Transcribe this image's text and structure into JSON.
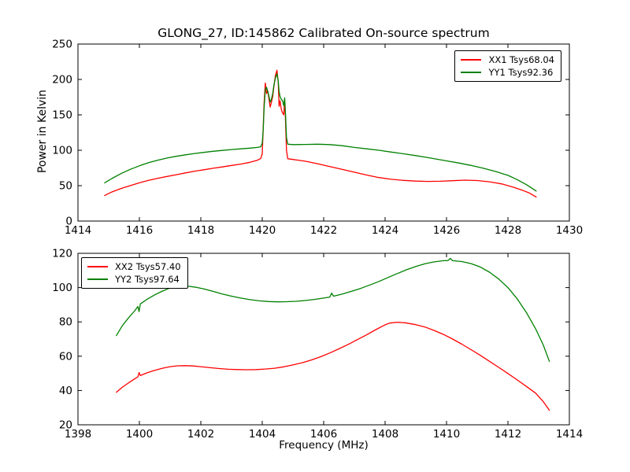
{
  "figure": {
    "title": "GLONG_27, ID:145862 Calibrated On-source spectrum",
    "xlabel": "Frequency (MHz)",
    "ylabel": "Power in Kelvin",
    "background_color": "#ffffff",
    "axis_color": "#000000"
  },
  "chart_data": [
    {
      "type": "line",
      "panel": "top",
      "xlim": [
        1414,
        1430
      ],
      "ylim": [
        0,
        250
      ],
      "xticks": [
        1414,
        1416,
        1418,
        1420,
        1422,
        1424,
        1426,
        1428,
        1430
      ],
      "yticks": [
        0,
        50,
        100,
        150,
        200,
        250
      ],
      "grid": false,
      "legend": {
        "position": "upper right",
        "entries": [
          {
            "label": "XX1 Tsys68.04",
            "color": "#ff0000"
          },
          {
            "label": "YY1 Tsys92.36",
            "color": "#008000"
          }
        ]
      },
      "series": [
        {
          "name": "XX1",
          "tsys": 68.04,
          "color": "#ff0000",
          "points": [
            [
              1414.87,
              36
            ],
            [
              1415.1,
              41
            ],
            [
              1415.4,
              46
            ],
            [
              1415.7,
              50
            ],
            [
              1416.0,
              54
            ],
            [
              1416.3,
              57.5
            ],
            [
              1416.6,
              60.5
            ],
            [
              1416.9,
              63
            ],
            [
              1417.2,
              65.5
            ],
            [
              1417.5,
              68
            ],
            [
              1417.8,
              70.5
            ],
            [
              1418.1,
              72.5
            ],
            [
              1418.4,
              74.5
            ],
            [
              1418.7,
              76.5
            ],
            [
              1419.0,
              78.5
            ],
            [
              1419.3,
              80.5
            ],
            [
              1419.6,
              83
            ],
            [
              1419.85,
              86
            ],
            [
              1419.95,
              88.5
            ],
            [
              1420.0,
              95
            ],
            [
              1420.03,
              130
            ],
            [
              1420.06,
              165
            ],
            [
              1420.1,
              195
            ],
            [
              1420.14,
              180
            ],
            [
              1420.18,
              184
            ],
            [
              1420.22,
              172
            ],
            [
              1420.26,
              161
            ],
            [
              1420.3,
              168
            ],
            [
              1420.34,
              176
            ],
            [
              1420.38,
              190
            ],
            [
              1420.43,
              206
            ],
            [
              1420.48,
              213
            ],
            [
              1420.52,
              196
            ],
            [
              1420.55,
              162
            ],
            [
              1420.58,
              170
            ],
            [
              1420.62,
              158
            ],
            [
              1420.66,
              153
            ],
            [
              1420.7,
              150
            ],
            [
              1420.73,
              170
            ],
            [
              1420.76,
              140
            ],
            [
              1420.79,
              100
            ],
            [
              1420.83,
              88
            ],
            [
              1421.0,
              87
            ],
            [
              1421.4,
              84.5
            ],
            [
              1421.8,
              81
            ],
            [
              1422.2,
              77
            ],
            [
              1422.6,
              73
            ],
            [
              1423.0,
              69
            ],
            [
              1423.4,
              65
            ],
            [
              1423.8,
              61.5
            ],
            [
              1424.2,
              59
            ],
            [
              1424.6,
              57.5
            ],
            [
              1425.0,
              56.5
            ],
            [
              1425.4,
              56
            ],
            [
              1425.8,
              56.2
            ],
            [
              1426.2,
              57
            ],
            [
              1426.6,
              57.8
            ],
            [
              1427.0,
              57.2
            ],
            [
              1427.4,
              55.5
            ],
            [
              1427.8,
              52.5
            ],
            [
              1428.2,
              47.5
            ],
            [
              1428.5,
              43
            ],
            [
              1428.7,
              39.5
            ],
            [
              1428.92,
              34
            ]
          ]
        },
        {
          "name": "YY1",
          "tsys": 92.36,
          "color": "#008000",
          "points": [
            [
              1414.87,
              54
            ],
            [
              1415.1,
              60
            ],
            [
              1415.4,
              67
            ],
            [
              1415.7,
              73
            ],
            [
              1416.0,
              78
            ],
            [
              1416.3,
              82.5
            ],
            [
              1416.6,
              86
            ],
            [
              1416.9,
              89
            ],
            [
              1417.2,
              91.5
            ],
            [
              1417.5,
              93.5
            ],
            [
              1417.8,
              95.5
            ],
            [
              1418.1,
              97
            ],
            [
              1418.4,
              98.5
            ],
            [
              1418.7,
              99.8
            ],
            [
              1419.0,
              101
            ],
            [
              1419.3,
              102
            ],
            [
              1419.6,
              103
            ],
            [
              1419.85,
              104
            ],
            [
              1419.95,
              105
            ],
            [
              1420.0,
              110
            ],
            [
              1420.03,
              128
            ],
            [
              1420.06,
              158
            ],
            [
              1420.1,
              186
            ],
            [
              1420.14,
              189
            ],
            [
              1420.18,
              183
            ],
            [
              1420.22,
              176
            ],
            [
              1420.26,
              168
            ],
            [
              1420.3,
              172
            ],
            [
              1420.34,
              180
            ],
            [
              1420.38,
              192
            ],
            [
              1420.43,
              202
            ],
            [
              1420.48,
              208
            ],
            [
              1420.52,
              198
            ],
            [
              1420.55,
              183
            ],
            [
              1420.58,
              176
            ],
            [
              1420.62,
              172
            ],
            [
              1420.66,
              170
            ],
            [
              1420.7,
              163
            ],
            [
              1420.73,
              174
            ],
            [
              1420.76,
              150
            ],
            [
              1420.79,
              118
            ],
            [
              1420.83,
              108.5
            ],
            [
              1421.0,
              108
            ],
            [
              1421.4,
              108.2
            ],
            [
              1421.8,
              108.5
            ],
            [
              1422.2,
              108
            ],
            [
              1422.6,
              106.5
            ],
            [
              1423.0,
              104
            ],
            [
              1423.4,
              102
            ],
            [
              1423.8,
              100
            ],
            [
              1424.2,
              97.5
            ],
            [
              1424.6,
              95
            ],
            [
              1425.0,
              92.5
            ],
            [
              1425.4,
              89.5
            ],
            [
              1426.0,
              85
            ],
            [
              1426.4,
              82
            ],
            [
              1426.8,
              78.5
            ],
            [
              1427.2,
              74.5
            ],
            [
              1427.6,
              70
            ],
            [
              1428.0,
              64.5
            ],
            [
              1428.3,
              58.5
            ],
            [
              1428.6,
              51.5
            ],
            [
              1428.92,
              42.5
            ]
          ]
        }
      ]
    },
    {
      "type": "line",
      "panel": "bottom",
      "xlim": [
        1398,
        1414
      ],
      "ylim": [
        20,
        120
      ],
      "xticks": [
        1398,
        1400,
        1402,
        1404,
        1406,
        1408,
        1410,
        1412,
        1414
      ],
      "yticks": [
        20,
        40,
        60,
        80,
        100,
        120
      ],
      "grid": false,
      "legend": {
        "position": "upper left",
        "entries": [
          {
            "label": "XX2 Tsys57.40",
            "color": "#ff0000"
          },
          {
            "label": "YY2 Tsys97.64",
            "color": "#008000"
          }
        ]
      },
      "series": [
        {
          "name": "XX2",
          "tsys": 57.4,
          "color": "#ff0000",
          "points": [
            [
              1399.25,
              39
            ],
            [
              1399.45,
              42
            ],
            [
              1399.65,
              44.5
            ],
            [
              1399.85,
              46.8
            ],
            [
              1399.95,
              48
            ],
            [
              1399.99,
              50.5
            ],
            [
              1400.03,
              48.7
            ],
            [
              1400.25,
              50.3
            ],
            [
              1400.5,
              51.8
            ],
            [
              1400.75,
              53
            ],
            [
              1401.0,
              53.9
            ],
            [
              1401.25,
              54.4
            ],
            [
              1401.5,
              54.5
            ],
            [
              1401.75,
              54.3
            ],
            [
              1402.0,
              53.9
            ],
            [
              1402.3,
              53.3
            ],
            [
              1402.6,
              52.8
            ],
            [
              1402.9,
              52.4
            ],
            [
              1403.2,
              52.2
            ],
            [
              1403.5,
              52.1
            ],
            [
              1403.8,
              52.2
            ],
            [
              1404.1,
              52.5
            ],
            [
              1404.4,
              53
            ],
            [
              1404.7,
              53.8
            ],
            [
              1405.0,
              54.9
            ],
            [
              1405.3,
              56.2
            ],
            [
              1405.6,
              57.8
            ],
            [
              1405.9,
              59.7
            ],
            [
              1406.2,
              61.9
            ],
            [
              1406.5,
              64.3
            ],
            [
              1406.8,
              66.9
            ],
            [
              1407.1,
              69.7
            ],
            [
              1407.4,
              72.5
            ],
            [
              1407.7,
              75.5
            ],
            [
              1408.0,
              78.3
            ],
            [
              1408.15,
              79.3
            ],
            [
              1408.4,
              79.8
            ],
            [
              1408.65,
              79.5
            ],
            [
              1409.0,
              78.4
            ],
            [
              1409.3,
              77
            ],
            [
              1409.6,
              75
            ],
            [
              1409.9,
              72.7
            ],
            [
              1410.2,
              70
            ],
            [
              1410.5,
              67
            ],
            [
              1410.8,
              63.8
            ],
            [
              1411.1,
              60.5
            ],
            [
              1411.4,
              57
            ],
            [
              1411.7,
              53.5
            ],
            [
              1412.0,
              49.9
            ],
            [
              1412.3,
              46.2
            ],
            [
              1412.6,
              42.4
            ],
            [
              1412.9,
              38.5
            ],
            [
              1413.15,
              33.5
            ],
            [
              1413.35,
              28.5
            ]
          ]
        },
        {
          "name": "YY2",
          "tsys": 97.64,
          "color": "#008000",
          "points": [
            [
              1399.25,
              72
            ],
            [
              1399.45,
              78
            ],
            [
              1399.65,
              82.5
            ],
            [
              1399.85,
              86.5
            ],
            [
              1399.95,
              89
            ],
            [
              1399.99,
              86
            ],
            [
              1400.03,
              90.5
            ],
            [
              1400.25,
              93.2
            ],
            [
              1400.5,
              95.8
            ],
            [
              1400.75,
              98
            ],
            [
              1401.0,
              99.8
            ],
            [
              1401.2,
              100.7
            ],
            [
              1401.4,
              101
            ],
            [
              1401.6,
              100.8
            ],
            [
              1401.85,
              100.2
            ],
            [
              1402.1,
              99.2
            ],
            [
              1402.4,
              97.8
            ],
            [
              1402.7,
              96.3
            ],
            [
              1403.0,
              95
            ],
            [
              1403.3,
              93.9
            ],
            [
              1403.6,
              93
            ],
            [
              1403.9,
              92.3
            ],
            [
              1404.2,
              91.9
            ],
            [
              1404.5,
              91.7
            ],
            [
              1404.8,
              91.8
            ],
            [
              1405.1,
              92
            ],
            [
              1405.4,
              92.5
            ],
            [
              1405.7,
              93.1
            ],
            [
              1406.0,
              93.9
            ],
            [
              1406.2,
              94.5
            ],
            [
              1406.26,
              96.8
            ],
            [
              1406.32,
              95
            ],
            [
              1406.6,
              96.2
            ],
            [
              1406.9,
              97.8
            ],
            [
              1407.2,
              99.5
            ],
            [
              1407.5,
              101.5
            ],
            [
              1407.8,
              103.6
            ],
            [
              1408.1,
              105.9
            ],
            [
              1408.4,
              108.2
            ],
            [
              1408.7,
              110.4
            ],
            [
              1409.0,
              112.3
            ],
            [
              1409.3,
              113.9
            ],
            [
              1409.6,
              115
            ],
            [
              1409.9,
              115.7
            ],
            [
              1410.05,
              115.8
            ],
            [
              1410.12,
              117
            ],
            [
              1410.2,
              115.7
            ],
            [
              1410.5,
              115.2
            ],
            [
              1410.8,
              114
            ],
            [
              1411.1,
              112
            ],
            [
              1411.4,
              109
            ],
            [
              1411.7,
              105
            ],
            [
              1412.0,
              100
            ],
            [
              1412.3,
              93.5
            ],
            [
              1412.6,
              85.5
            ],
            [
              1412.9,
              76
            ],
            [
              1413.15,
              66.5
            ],
            [
              1413.35,
              57
            ]
          ]
        }
      ]
    }
  ]
}
